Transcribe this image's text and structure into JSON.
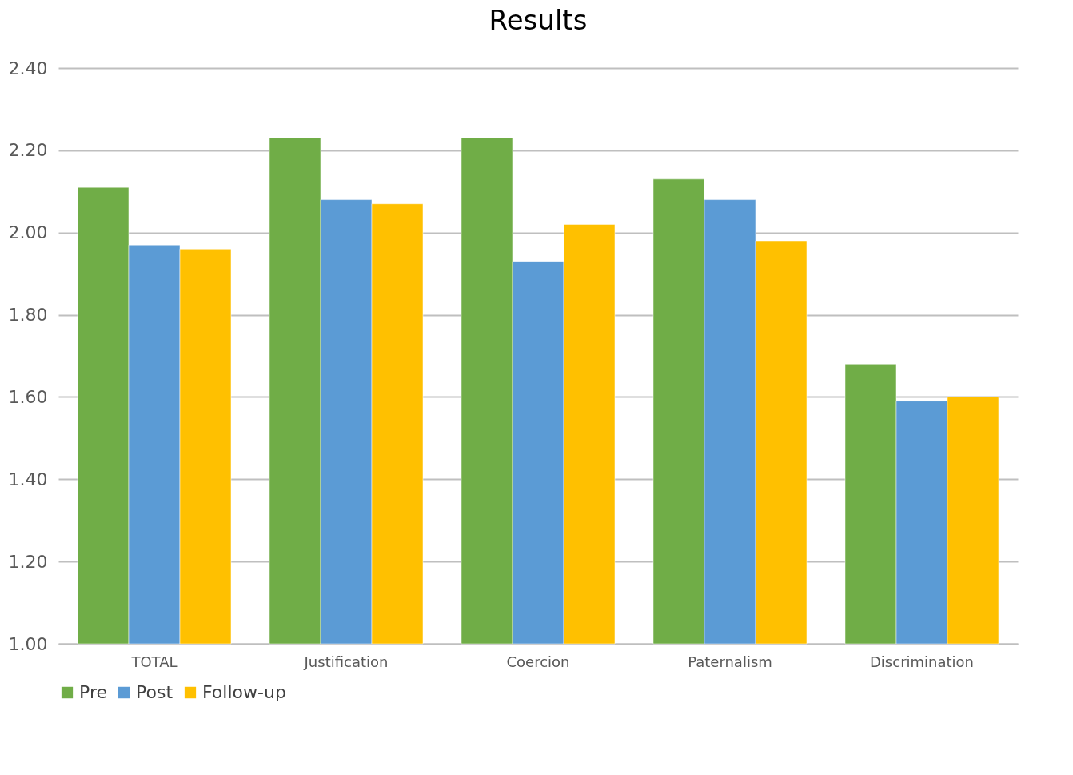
{
  "chart_data": {
    "type": "bar",
    "title": "Results",
    "categories": [
      "TOTAL",
      "Justification",
      "Coercion",
      "Paternalism",
      "Discrimination"
    ],
    "series": [
      {
        "name": "Pre",
        "color": "#70ad47",
        "values": [
          2.11,
          2.23,
          2.23,
          2.13,
          1.68
        ]
      },
      {
        "name": "Post",
        "color": "#5b9bd5",
        "values": [
          1.97,
          2.08,
          1.93,
          2.08,
          1.59
        ]
      },
      {
        "name": "Follow-up",
        "color": "#ffc000",
        "values": [
          1.96,
          2.07,
          2.02,
          1.98,
          1.6
        ]
      }
    ],
    "ylim": [
      1.0,
      2.4
    ],
    "yticks": [
      {
        "value": 1.0,
        "label": "1.00"
      },
      {
        "value": 1.2,
        "label": "1.20"
      },
      {
        "value": 1.4,
        "label": "1.40"
      },
      {
        "value": 1.6,
        "label": "1.60"
      },
      {
        "value": 1.8,
        "label": "1.80"
      },
      {
        "value": 2.0,
        "label": "2.00"
      },
      {
        "value": 2.2,
        "label": "2.20"
      },
      {
        "value": 2.4,
        "label": "2.40"
      }
    ],
    "grid": "y",
    "legend": "bottom"
  }
}
